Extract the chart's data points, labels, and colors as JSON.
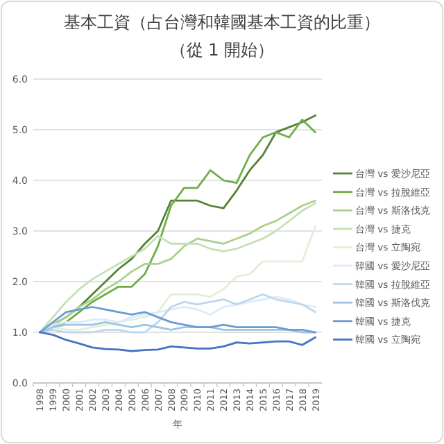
{
  "chart_data": {
    "type": "line",
    "title": "基本工資（占台灣和韓國基本工資的比重）",
    "subtitle": "（從 1 開始）",
    "xlabel": "年",
    "categories": [
      "1998",
      "1999",
      "2000",
      "2001",
      "2002",
      "2003",
      "2004",
      "2005",
      "2006",
      "2007",
      "2008",
      "2009",
      "2010",
      "2011",
      "2012",
      "2013",
      "2014",
      "2015",
      "2016",
      "2017",
      "2018",
      "2019"
    ],
    "ylim": [
      0,
      6
    ],
    "yticks": [
      {
        "value": 0,
        "label": "0.0"
      },
      {
        "value": 1,
        "label": "1.0"
      },
      {
        "value": 2,
        "label": "2.0"
      },
      {
        "value": 3,
        "label": "3.0"
      },
      {
        "value": 4,
        "label": "4.0"
      },
      {
        "value": 5,
        "label": "5.0"
      },
      {
        "value": 6,
        "label": "6.0"
      }
    ],
    "grid": "y",
    "legend": "right",
    "marker": "none",
    "line_style": "solid",
    "series": [
      {
        "name": "台灣 vs 愛沙尼亞",
        "color": "#548235",
        "values": [
          1.0,
          1.15,
          1.3,
          1.5,
          1.75,
          2.0,
          2.25,
          2.45,
          2.75,
          3.0,
          3.6,
          3.6,
          3.6,
          3.5,
          3.45,
          3.8,
          4.2,
          4.5,
          4.95,
          5.05,
          5.15,
          5.28
        ]
      },
      {
        "name": "台灣 vs 拉脫維亞",
        "color": "#70ad47",
        "values": [
          1.0,
          1.1,
          1.2,
          1.4,
          1.6,
          1.75,
          1.9,
          1.9,
          2.15,
          2.7,
          3.5,
          3.85,
          3.85,
          4.2,
          4.0,
          3.95,
          4.5,
          4.85,
          4.95,
          4.85,
          5.2,
          4.95
        ]
      },
      {
        "name": "台灣 vs 斯洛伐克",
        "color": "#a9d18e",
        "values": [
          1.0,
          1.15,
          1.3,
          1.5,
          1.65,
          1.85,
          2.0,
          2.2,
          2.35,
          2.35,
          2.45,
          2.7,
          2.85,
          2.8,
          2.75,
          2.85,
          2.95,
          3.1,
          3.2,
          3.35,
          3.5,
          3.6
        ]
      },
      {
        "name": "台灣 vs 捷克",
        "color": "#c5e0b4",
        "values": [
          1.0,
          1.3,
          1.6,
          1.85,
          2.05,
          2.2,
          2.35,
          2.5,
          2.65,
          2.9,
          2.75,
          2.75,
          2.75,
          2.65,
          2.6,
          2.65,
          2.75,
          2.85,
          3.0,
          3.2,
          3.4,
          3.55
        ]
      },
      {
        "name": "台灣 vs 立陶宛",
        "color": "#e2efda",
        "values": [
          1.0,
          1.1,
          1.05,
          1.05,
          1.1,
          1.15,
          1.2,
          1.25,
          1.3,
          1.4,
          1.75,
          1.75,
          1.75,
          1.7,
          1.85,
          2.1,
          2.15,
          2.4,
          2.4,
          2.4,
          2.4,
          3.1
        ]
      },
      {
        "name": "韓國 vs 愛沙尼亞",
        "color": "#ddebf7",
        "values": [
          1.0,
          1.15,
          1.2,
          1.2,
          1.25,
          1.25,
          1.2,
          1.3,
          1.35,
          1.4,
          1.45,
          1.5,
          1.45,
          1.35,
          1.5,
          1.55,
          1.6,
          1.65,
          1.7,
          1.65,
          1.55,
          1.5
        ]
      },
      {
        "name": "韓國 vs 拉脫維亞",
        "color": "#bdd7ee",
        "values": [
          1.0,
          1.05,
          1.0,
          1.0,
          1.0,
          1.05,
          1.05,
          1.0,
          1.0,
          1.2,
          1.5,
          1.6,
          1.55,
          1.6,
          1.65,
          1.55,
          1.65,
          1.75,
          1.65,
          1.6,
          1.55,
          1.4
        ]
      },
      {
        "name": "韓國 vs 斯洛伐克",
        "color": "#9dc3e6",
        "values": [
          1.0,
          1.1,
          1.15,
          1.15,
          1.15,
          1.2,
          1.15,
          1.1,
          1.15,
          1.1,
          1.05,
          1.1,
          1.1,
          1.1,
          1.05,
          1.05,
          1.05,
          1.05,
          1.05,
          1.05,
          1.0,
          1.0
        ]
      },
      {
        "name": "韓國 vs 捷克",
        "color": "#6b9bd2",
        "values": [
          1.0,
          1.2,
          1.4,
          1.45,
          1.5,
          1.45,
          1.4,
          1.35,
          1.4,
          1.3,
          1.2,
          1.15,
          1.1,
          1.1,
          1.15,
          1.1,
          1.1,
          1.1,
          1.1,
          1.05,
          1.05,
          1.0
        ]
      },
      {
        "name": "韓國 vs 立陶宛",
        "color": "#4472c4",
        "values": [
          1.0,
          0.95,
          0.85,
          0.78,
          0.7,
          0.67,
          0.66,
          0.63,
          0.65,
          0.66,
          0.72,
          0.7,
          0.68,
          0.68,
          0.72,
          0.8,
          0.78,
          0.8,
          0.82,
          0.82,
          0.75,
          0.9
        ]
      }
    ]
  }
}
